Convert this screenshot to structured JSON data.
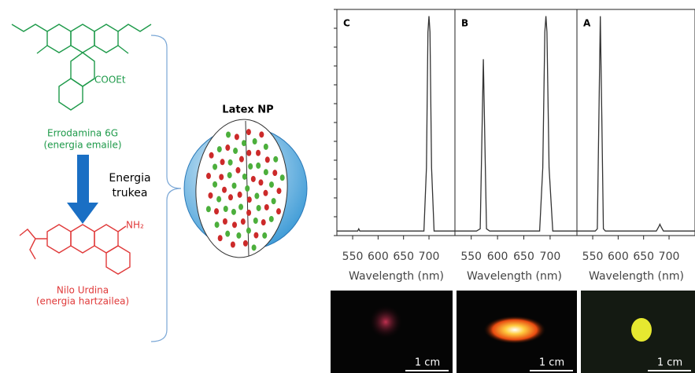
{
  "donor": {
    "name": "Errodamina 6G",
    "role": "(energia emaile)",
    "group": "COOEt"
  },
  "transfer": {
    "line1": "Energia",
    "line2": "trukea"
  },
  "acceptor": {
    "name": "Nilo Urdina",
    "role": "(energia hartzailea)",
    "group": "NH₂"
  },
  "particle": {
    "label": "Latex NP"
  },
  "chart_data": [
    {
      "type": "line",
      "title": "C",
      "xlabel": "Wavelength (nm)",
      "color": "#333333",
      "xlim": [
        519,
        751
      ],
      "ylim": [
        0,
        1
      ],
      "xticks": [
        550,
        600,
        650,
        700
      ],
      "x": [
        519,
        540,
        560,
        562,
        564,
        600,
        690,
        695,
        698,
        700,
        702,
        705,
        710,
        751
      ],
      "values": [
        0.02,
        0.02,
        0.02,
        0.03,
        0.02,
        0.02,
        0.02,
        0.3,
        0.9,
        0.97,
        0.9,
        0.3,
        0.02,
        0.02
      ]
    },
    {
      "type": "line",
      "title": "B",
      "xlabel": "Wavelength (nm)",
      "color": "#333333",
      "xlim": [
        519,
        751
      ],
      "ylim": [
        0,
        1
      ],
      "xticks": [
        550,
        600,
        650,
        700
      ],
      "x": [
        519,
        560,
        567,
        570,
        573,
        576,
        579,
        585,
        680,
        686,
        690,
        692,
        694,
        698,
        705,
        751
      ],
      "values": [
        0.02,
        0.02,
        0.03,
        0.4,
        0.78,
        0.4,
        0.03,
        0.02,
        0.02,
        0.3,
        0.9,
        0.97,
        0.9,
        0.3,
        0.02,
        0.02
      ]
    },
    {
      "type": "line",
      "title": "A",
      "xlabel": "Wavelength (nm)",
      "color": "#333333",
      "xlim": [
        519,
        751
      ],
      "ylim": [
        0,
        1
      ],
      "xticks": [
        550,
        600,
        650,
        700
      ],
      "x": [
        519,
        555,
        559,
        562,
        565,
        568,
        571,
        575,
        675,
        680,
        682,
        684,
        689,
        751
      ],
      "values": [
        0.02,
        0.02,
        0.03,
        0.5,
        0.97,
        0.5,
        0.03,
        0.02,
        0.02,
        0.04,
        0.05,
        0.04,
        0.02,
        0.02
      ]
    }
  ],
  "photos": [
    {
      "scale": "1 cm"
    },
    {
      "scale": "1 cm"
    },
    {
      "scale": "1 cm"
    }
  ]
}
